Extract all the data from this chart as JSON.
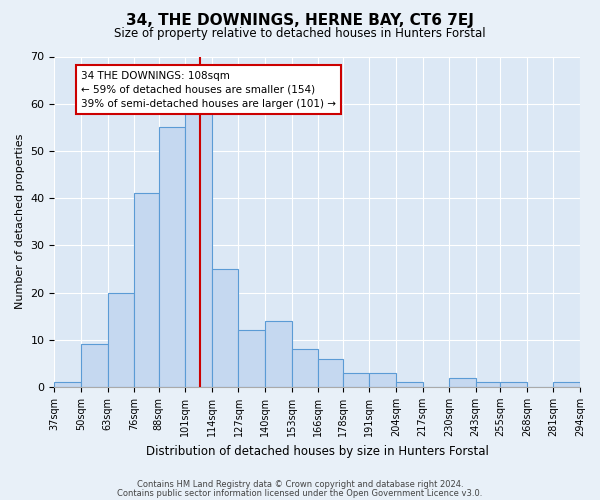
{
  "title": "34, THE DOWNINGS, HERNE BAY, CT6 7EJ",
  "subtitle": "Size of property relative to detached houses in Hunters Forstal",
  "xlabel": "Distribution of detached houses by size in Hunters Forstal",
  "ylabel": "Number of detached properties",
  "bin_edges": [
    37,
    50,
    63,
    76,
    88,
    101,
    114,
    127,
    140,
    153,
    166,
    178,
    191,
    204,
    217,
    230,
    243,
    255,
    268,
    281,
    294
  ],
  "bin_edge_labels": [
    "37sqm",
    "50sqm",
    "63sqm",
    "76sqm",
    "88sqm",
    "101sqm",
    "114sqm",
    "127sqm",
    "140sqm",
    "153sqm",
    "166sqm",
    "178sqm",
    "191sqm",
    "204sqm",
    "217sqm",
    "230sqm",
    "243sqm",
    "255sqm",
    "268sqm",
    "281sqm",
    "294sqm"
  ],
  "bin_values": [
    1,
    9,
    20,
    41,
    55,
    59,
    25,
    12,
    14,
    8,
    6,
    3,
    3,
    1,
    0,
    2,
    1,
    1,
    0,
    1
  ],
  "bar_color": "#c5d8f0",
  "bar_edge_color": "#5b9bd5",
  "vline_x": 108,
  "vline_color": "#cc0000",
  "ylim": [
    0,
    70
  ],
  "yticks": [
    0,
    10,
    20,
    30,
    40,
    50,
    60,
    70
  ],
  "annotation_text": "34 THE DOWNINGS: 108sqm\n← 59% of detached houses are smaller (154)\n39% of semi-detached houses are larger (101) →",
  "annotation_box_color": "#cc0000",
  "footer1": "Contains HM Land Registry data © Crown copyright and database right 2024.",
  "footer2": "Contains public sector information licensed under the Open Government Licence v3.0.",
  "background_color": "#e8f0f8",
  "plot_bg_color": "#dce8f5"
}
